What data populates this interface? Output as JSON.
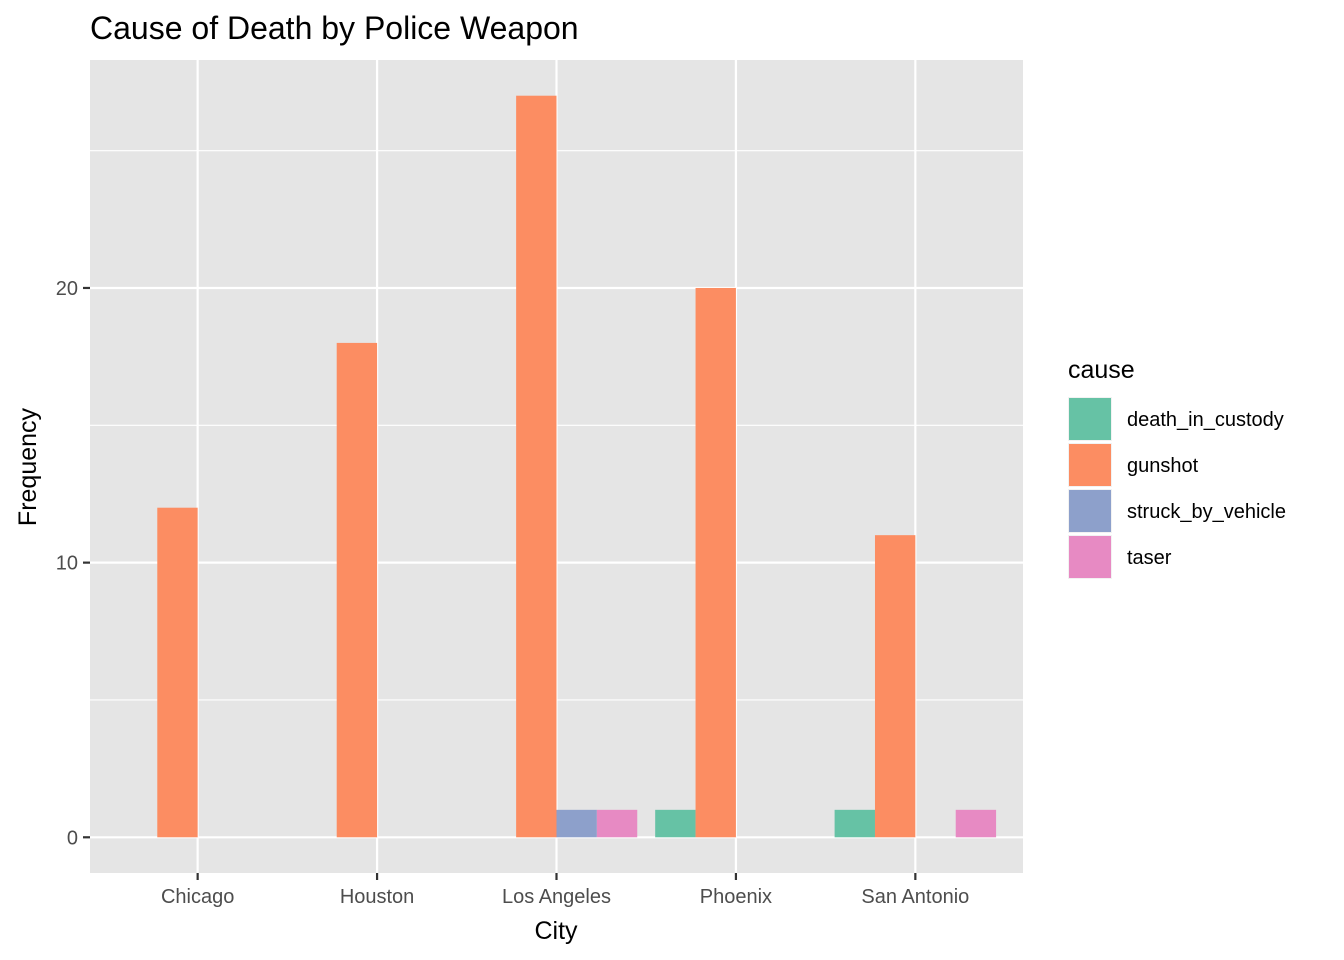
{
  "chart_data": {
    "type": "bar",
    "title": "Cause of Death by Police Weapon",
    "xlabel": "City",
    "ylabel": "Frequency",
    "categories": [
      "Chicago",
      "Houston",
      "Los Angeles",
      "Phoenix",
      "San Antonio"
    ],
    "ylim": [
      -1.3,
      28.3
    ],
    "yticks": [
      0,
      10,
      20
    ],
    "grid": true,
    "legend": {
      "title": "cause",
      "position": "right"
    },
    "series": [
      {
        "name": "death_in_custody",
        "color": "#66c2a5",
        "values": [
          0,
          0,
          0,
          1,
          1
        ]
      },
      {
        "name": "gunshot",
        "color": "#fc8d62",
        "values": [
          12,
          18,
          27,
          20,
          11
        ]
      },
      {
        "name": "struck_by_vehicle",
        "color": "#8da0cb",
        "values": [
          0,
          0,
          1,
          0,
          0
        ]
      },
      {
        "name": "taser",
        "color": "#e78ac3",
        "values": [
          0,
          0,
          1,
          0,
          1
        ]
      }
    ]
  }
}
